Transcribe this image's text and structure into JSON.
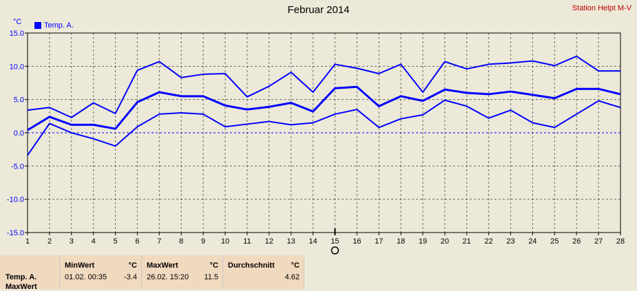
{
  "header": {
    "title": "Februar 2014",
    "station": "Station Helpt M-V",
    "unit": "°C",
    "legend_label": "Temp. A."
  },
  "colors": {
    "series": "#0000ff",
    "grid": "#000080",
    "zero_line": "#0000ff",
    "background": "#ece9d8",
    "footer": "#f1d9bf"
  },
  "chart_data": {
    "type": "line",
    "title": "Februar 2014",
    "ylabel": "°C",
    "ylim": [
      -15,
      15
    ],
    "yticks": [
      -15,
      -10,
      -5,
      0,
      5,
      10,
      15
    ],
    "ytick_labels": [
      "-15.0",
      "-10.0",
      "-5.0",
      "0.0",
      "5.0",
      "10.0",
      "15.0"
    ],
    "x": [
      1,
      2,
      3,
      4,
      5,
      6,
      7,
      8,
      9,
      10,
      11,
      12,
      13,
      14,
      15,
      16,
      17,
      18,
      19,
      20,
      21,
      22,
      23,
      24,
      25,
      26,
      27,
      28
    ],
    "grid": true,
    "legend": "top-left",
    "series": [
      {
        "name": "Temp. A.",
        "role": "max",
        "values": [
          3.4,
          3.8,
          2.3,
          4.5,
          2.9,
          9.4,
          10.7,
          8.3,
          8.8,
          8.9,
          5.4,
          7.0,
          9.1,
          6.1,
          10.3,
          9.7,
          8.9,
          10.3,
          6.1,
          10.7,
          9.6,
          10.3,
          10.5,
          10.8,
          10.1,
          11.5,
          9.3,
          9.3
        ]
      },
      {
        "name": "Temp. A.",
        "role": "mean",
        "values": [
          0.4,
          2.4,
          1.2,
          1.2,
          0.6,
          4.6,
          6.1,
          5.5,
          5.5,
          4.1,
          3.5,
          3.9,
          4.5,
          3.2,
          6.7,
          6.9,
          4.0,
          5.5,
          4.8,
          6.5,
          6.0,
          5.8,
          6.2,
          5.7,
          5.2,
          6.6,
          6.6,
          5.8
        ]
      },
      {
        "name": "Temp. A.",
        "role": "min",
        "values": [
          -3.4,
          1.4,
          0.0,
          -0.9,
          -2.0,
          0.9,
          2.8,
          3.0,
          2.8,
          0.9,
          1.3,
          1.7,
          1.2,
          1.5,
          2.8,
          3.5,
          0.8,
          2.1,
          2.7,
          4.9,
          4.0,
          2.2,
          3.4,
          1.5,
          0.8,
          2.8,
          4.8,
          3.8
        ]
      }
    ]
  },
  "cursor": {
    "day": 15
  },
  "footer": {
    "row_labels": [
      "Temp. A.",
      "MaxWert"
    ],
    "min": {
      "header": "MinWert",
      "unit": "°C",
      "datetime": "01.02.  00:35",
      "value": "-3.4"
    },
    "max": {
      "header": "MaxWert",
      "unit": "°C",
      "datetime": "26.02.  15:20",
      "value": "11.5"
    },
    "avg": {
      "header": "Durchschnitt",
      "unit": "°C",
      "value": "4.62"
    }
  }
}
